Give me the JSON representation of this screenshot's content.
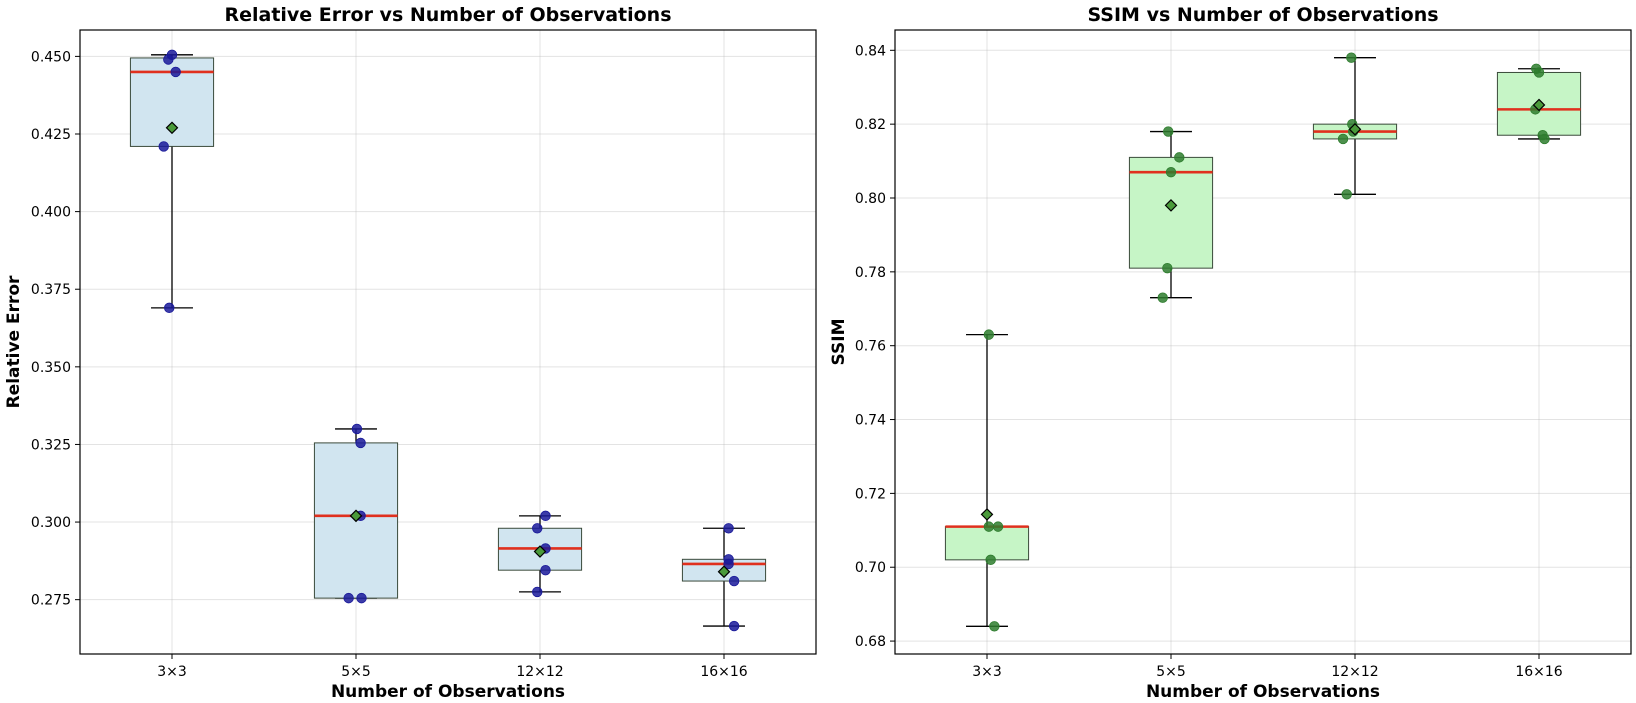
{
  "chart_data": [
    {
      "type": "box",
      "title": "Relative Error vs Number of Observations",
      "xlabel": "Number of Observations",
      "ylabel": "Relative Error",
      "categories": [
        "3×3",
        "5×5",
        "12×12",
        "16×16"
      ],
      "ylim": [
        0.2575,
        0.4585
      ],
      "yticks": [
        0.275,
        0.3,
        0.325,
        0.35,
        0.375,
        0.4,
        0.425,
        0.45
      ],
      "ytick_labels": [
        "0.275",
        "0.300",
        "0.325",
        "0.350",
        "0.375",
        "0.400",
        "0.425",
        "0.450"
      ],
      "box_color": "#d1e5f0",
      "point_color": "#1a1a9a",
      "boxes": [
        {
          "whislo": 0.369,
          "q1": 0.421,
          "med": 0.445,
          "q3": 0.4495,
          "whishi": 0.4505,
          "mean": 0.427
        },
        {
          "whislo": 0.2755,
          "q1": 0.2755,
          "med": 0.302,
          "q3": 0.3255,
          "whishi": 0.33,
          "mean": 0.302
        },
        {
          "whislo": 0.2775,
          "q1": 0.2845,
          "med": 0.2915,
          "q3": 0.298,
          "whishi": 0.302,
          "mean": 0.2905
        },
        {
          "whislo": 0.2665,
          "q1": 0.281,
          "med": 0.2865,
          "q3": 0.288,
          "whishi": 0.298,
          "mean": 0.284
        }
      ],
      "points": [
        [
          {
            "dx": -0.04,
            "y": 0.449
          },
          {
            "dx": 0.0,
            "y": 0.4505
          },
          {
            "dx": 0.04,
            "y": 0.445
          },
          {
            "dx": -0.09,
            "y": 0.421
          },
          {
            "dx": -0.03,
            "y": 0.369
          }
        ],
        [
          {
            "dx": 0.01,
            "y": 0.33
          },
          {
            "dx": 0.05,
            "y": 0.3255
          },
          {
            "dx": 0.05,
            "y": 0.302
          },
          {
            "dx": -0.08,
            "y": 0.2755
          },
          {
            "dx": 0.06,
            "y": 0.2755
          }
        ],
        [
          {
            "dx": 0.06,
            "y": 0.302
          },
          {
            "dx": -0.03,
            "y": 0.298
          },
          {
            "dx": 0.06,
            "y": 0.2915
          },
          {
            "dx": 0.06,
            "y": 0.2845
          },
          {
            "dx": -0.03,
            "y": 0.2775
          }
        ],
        [
          {
            "dx": 0.05,
            "y": 0.298
          },
          {
            "dx": 0.05,
            "y": 0.288
          },
          {
            "dx": 0.05,
            "y": 0.2865
          },
          {
            "dx": 0.11,
            "y": 0.281
          },
          {
            "dx": 0.11,
            "y": 0.2665
          }
        ]
      ]
    },
    {
      "type": "box",
      "title": "SSIM vs Number of Observations",
      "xlabel": "Number of Observations",
      "ylabel": "SSIM",
      "categories": [
        "3×3",
        "5×5",
        "12×12",
        "16×16"
      ],
      "ylim": [
        0.6765,
        0.8455
      ],
      "yticks": [
        0.68,
        0.7,
        0.72,
        0.74,
        0.76,
        0.78,
        0.8,
        0.82,
        0.84
      ],
      "ytick_labels": [
        "0.68",
        "0.70",
        "0.72",
        "0.74",
        "0.76",
        "0.78",
        "0.80",
        "0.82",
        "0.84"
      ],
      "box_color": "#c6f5c6",
      "point_color": "#2e7d2e",
      "boxes": [
        {
          "whislo": 0.684,
          "q1": 0.702,
          "med": 0.711,
          "q3": 0.711,
          "whishi": 0.763,
          "mean": 0.7143
        },
        {
          "whislo": 0.773,
          "q1": 0.781,
          "med": 0.807,
          "q3": 0.811,
          "whishi": 0.818,
          "mean": 0.798
        },
        {
          "whislo": 0.801,
          "q1": 0.816,
          "med": 0.818,
          "q3": 0.82,
          "whishi": 0.838,
          "mean": 0.8186
        },
        {
          "whislo": 0.816,
          "q1": 0.817,
          "med": 0.824,
          "q3": 0.834,
          "whishi": 0.835,
          "mean": 0.8252
        }
      ],
      "points": [
        [
          {
            "dx": 0.02,
            "y": 0.763
          },
          {
            "dx": 0.02,
            "y": 0.711
          },
          {
            "dx": 0.12,
            "y": 0.711
          },
          {
            "dx": 0.04,
            "y": 0.702
          },
          {
            "dx": 0.08,
            "y": 0.684
          }
        ],
        [
          {
            "dx": -0.03,
            "y": 0.818
          },
          {
            "dx": 0.09,
            "y": 0.811
          },
          {
            "dx": 0.0,
            "y": 0.807
          },
          {
            "dx": -0.04,
            "y": 0.781
          },
          {
            "dx": -0.09,
            "y": 0.773
          }
        ],
        [
          {
            "dx": -0.04,
            "y": 0.838
          },
          {
            "dx": -0.03,
            "y": 0.82
          },
          {
            "dx": -0.02,
            "y": 0.818
          },
          {
            "dx": -0.13,
            "y": 0.816
          },
          {
            "dx": -0.09,
            "y": 0.801
          }
        ],
        [
          {
            "dx": -0.03,
            "y": 0.835
          },
          {
            "dx": 0.0,
            "y": 0.834
          },
          {
            "dx": -0.04,
            "y": 0.824
          },
          {
            "dx": 0.04,
            "y": 0.817
          },
          {
            "dx": 0.06,
            "y": 0.816
          }
        ]
      ]
    }
  ]
}
